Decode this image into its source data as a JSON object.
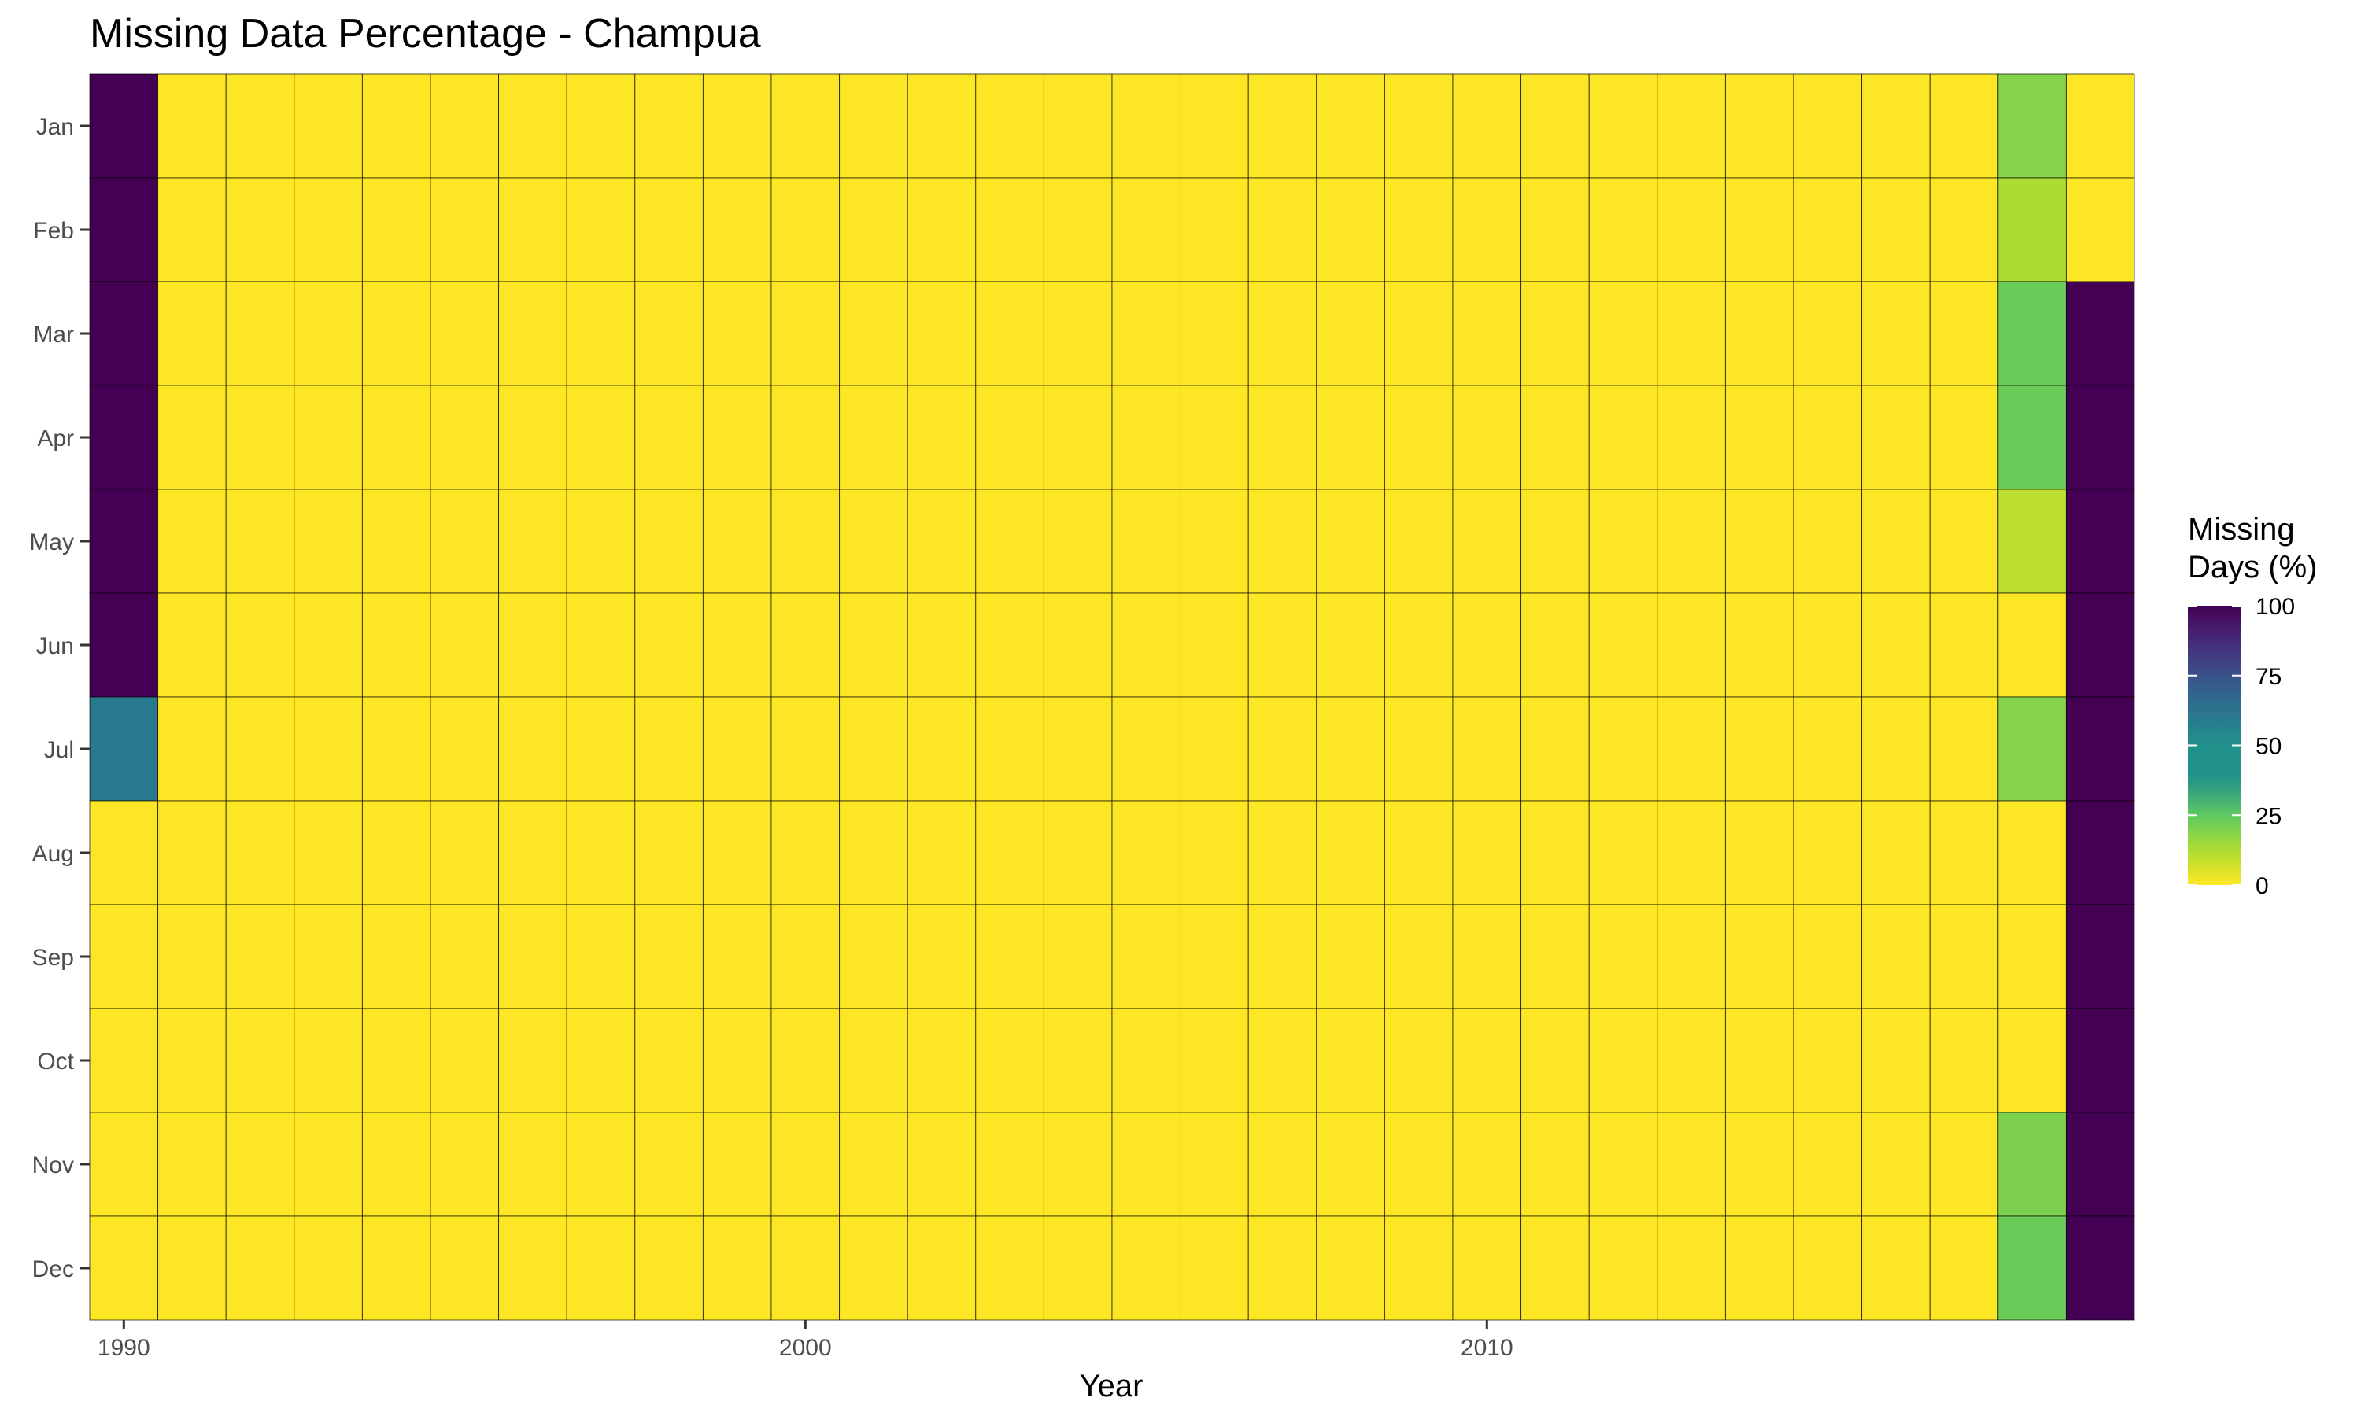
{
  "chart_data": {
    "type": "heatmap",
    "title": "Missing Data Percentage - Champua",
    "xlabel": "Year",
    "ylabel": "",
    "x_tick_labels": [
      "1990",
      "2000",
      "2010"
    ],
    "years": [
      1990,
      1991,
      1992,
      1993,
      1994,
      1995,
      1996,
      1997,
      1998,
      1999,
      2000,
      2001,
      2002,
      2003,
      2004,
      2005,
      2006,
      2007,
      2008,
      2009,
      2010,
      2011,
      2012,
      2013,
      2014,
      2015,
      2016,
      2017,
      2018,
      2019
    ],
    "months": [
      "Jan",
      "Feb",
      "Mar",
      "Apr",
      "May",
      "Jun",
      "Jul",
      "Aug",
      "Sep",
      "Oct",
      "Nov",
      "Dec"
    ],
    "values": [
      [
        100,
        100,
        100,
        100,
        100,
        100,
        60,
        0,
        0,
        0,
        0,
        0
      ],
      [
        0,
        0,
        0,
        0,
        0,
        0,
        0,
        0,
        0,
        0,
        0,
        0
      ],
      [
        0,
        0,
        0,
        0,
        0,
        0,
        0,
        0,
        0,
        0,
        0,
        0
      ],
      [
        0,
        0,
        0,
        0,
        0,
        0,
        0,
        0,
        0,
        0,
        0,
        0
      ],
      [
        0,
        0,
        0,
        0,
        0,
        0,
        0,
        0,
        0,
        0,
        0,
        0
      ],
      [
        0,
        0,
        0,
        0,
        0,
        0,
        0,
        0,
        0,
        0,
        0,
        0
      ],
      [
        0,
        0,
        0,
        0,
        0,
        0,
        0,
        0,
        0,
        0,
        0,
        0
      ],
      [
        0,
        0,
        0,
        0,
        0,
        0,
        0,
        0,
        0,
        0,
        0,
        0
      ],
      [
        0,
        0,
        0,
        0,
        0,
        0,
        0,
        0,
        0,
        0,
        0,
        0
      ],
      [
        0,
        0,
        0,
        0,
        0,
        0,
        0,
        0,
        0,
        0,
        0,
        0
      ],
      [
        0,
        0,
        0,
        0,
        0,
        0,
        0,
        0,
        0,
        0,
        0,
        0
      ],
      [
        0,
        0,
        0,
        0,
        0,
        0,
        0,
        0,
        0,
        0,
        0,
        0
      ],
      [
        0,
        0,
        0,
        0,
        0,
        0,
        0,
        0,
        0,
        0,
        0,
        0
      ],
      [
        0,
        0,
        0,
        0,
        0,
        0,
        0,
        0,
        0,
        0,
        0,
        0
      ],
      [
        0,
        0,
        0,
        0,
        0,
        0,
        0,
        0,
        0,
        0,
        0,
        0
      ],
      [
        0,
        0,
        0,
        0,
        0,
        0,
        0,
        0,
        0,
        0,
        0,
        0
      ],
      [
        0,
        0,
        0,
        0,
        0,
        0,
        0,
        0,
        0,
        0,
        0,
        0
      ],
      [
        0,
        0,
        0,
        0,
        0,
        0,
        0,
        0,
        0,
        0,
        0,
        0
      ],
      [
        0,
        0,
        0,
        0,
        0,
        0,
        0,
        0,
        0,
        0,
        0,
        0
      ],
      [
        0,
        0,
        0,
        0,
        0,
        0,
        0,
        0,
        0,
        0,
        0,
        0
      ],
      [
        0,
        0,
        0,
        0,
        0,
        0,
        0,
        0,
        0,
        0,
        0,
        0
      ],
      [
        0,
        0,
        0,
        0,
        0,
        0,
        0,
        0,
        0,
        0,
        0,
        0
      ],
      [
        0,
        0,
        0,
        0,
        0,
        0,
        0,
        0,
        0,
        0,
        0,
        0
      ],
      [
        0,
        0,
        0,
        0,
        0,
        0,
        0,
        0,
        0,
        0,
        0,
        0
      ],
      [
        0,
        0,
        0,
        0,
        0,
        0,
        0,
        0,
        0,
        0,
        0,
        0
      ],
      [
        0,
        0,
        0,
        0,
        0,
        0,
        0,
        0,
        0,
        0,
        0,
        0
      ],
      [
        0,
        0,
        0,
        0,
        0,
        0,
        0,
        0,
        0,
        0,
        0,
        0
      ],
      [
        0,
        0,
        0,
        0,
        0,
        0,
        0,
        0,
        0,
        0,
        0,
        0
      ],
      [
        19,
        13,
        23,
        23,
        10,
        0,
        19,
        0,
        0,
        0,
        20,
        23
      ],
      [
        0,
        0,
        100,
        100,
        100,
        100,
        100,
        100,
        100,
        100,
        100,
        100
      ]
    ],
    "legend": {
      "title_lines": [
        "Missing",
        "Days (%)"
      ],
      "ticks": [
        0,
        25,
        50,
        75,
        100
      ],
      "position": "right"
    },
    "color_scale": {
      "name": "viridis-reversed",
      "min": 0,
      "max": 100
    },
    "grid": false
  }
}
